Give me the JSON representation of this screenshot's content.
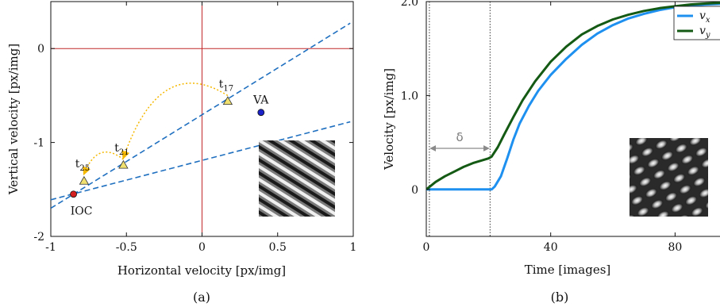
{
  "chart_data": [
    {
      "type": "scatter",
      "panel_label": "(a)",
      "xlabel": "Horizontal velocity [px/img]",
      "ylabel": "Vertical velocity [px/img]",
      "xlim": [
        -1,
        1
      ],
      "ylim": [
        -2,
        0.5
      ],
      "xticks": [
        -1,
        -0.5,
        0,
        0.5,
        1
      ],
      "xtick_labels": [
        "-1",
        "-0.5",
        "0",
        "0.5",
        "1"
      ],
      "yticks": [
        -2,
        -1,
        0
      ],
      "ytick_labels": [
        "-2",
        "-1",
        "0"
      ],
      "reference_lines": {
        "x": 0,
        "y": 0,
        "color": "#c0282a"
      },
      "constraint_lines": [
        {
          "x": [
            -1,
            0.98
          ],
          "y": [
            -1.7,
            0.27
          ],
          "color": "#2070c0",
          "style": "dashed"
        },
        {
          "x": [
            -1,
            0.98
          ],
          "y": [
            -1.61,
            -0.78
          ],
          "color": "#2070c0",
          "style": "dashed"
        }
      ],
      "points": [
        {
          "label": "IOC",
          "x": -0.85,
          "y": -1.55,
          "color": "#d42020",
          "marker": "circle"
        },
        {
          "label": "VA",
          "x": 0.39,
          "y": -0.68,
          "color": "#1a22c8",
          "marker": "circle"
        },
        {
          "label": "t17",
          "label_main": "t",
          "label_sub": "17",
          "x": 0.17,
          "y": -0.56,
          "color": "#f0e070",
          "marker": "triangle"
        },
        {
          "label": "t21",
          "label_main": "t",
          "label_sub": "21",
          "x": -0.52,
          "y": -1.24,
          "color": "#f0e070",
          "marker": "triangle"
        },
        {
          "label": "t25",
          "label_main": "t",
          "label_sub": "25",
          "x": -0.78,
          "y": -1.41,
          "color": "#f0e070",
          "marker": "triangle"
        }
      ],
      "arrows": [
        {
          "from": "t17",
          "to": "t21",
          "color": "#f5b800",
          "style": "dotted"
        },
        {
          "from": "t21",
          "to": "t25",
          "color": "#f5b800",
          "style": "dotted"
        }
      ],
      "inset": "diagonal grating pattern"
    },
    {
      "type": "line",
      "panel_label": "(b)",
      "xlabel": "Time [images]",
      "ylabel": "Velocity [px/img]",
      "xlim": [
        0,
        97
      ],
      "ylim": [
        -0.5,
        2.0
      ],
      "xticks": [
        0,
        40,
        80
      ],
      "xtick_labels": [
        "0",
        "40",
        "80"
      ],
      "yticks": [
        0,
        1.0,
        2.0
      ],
      "ytick_labels": [
        "0",
        "1.0",
        "2.0"
      ],
      "vlines": [
        1,
        20.5
      ],
      "delta_label": "δ",
      "legend_position": "top-right",
      "series": [
        {
          "name": "vx",
          "name_main": "v",
          "name_sub": "x",
          "color": "#1e90ef",
          "x": [
            0,
            10,
            20,
            21,
            22,
            24,
            26,
            28,
            30,
            33,
            36,
            40,
            45,
            50,
            55,
            60,
            65,
            70,
            75,
            80,
            85,
            90,
            97
          ],
          "y": [
            0,
            0,
            0,
            0.0,
            0.03,
            0.14,
            0.33,
            0.53,
            0.7,
            0.89,
            1.05,
            1.22,
            1.39,
            1.54,
            1.66,
            1.75,
            1.82,
            1.87,
            1.91,
            1.94,
            1.96,
            1.97,
            1.98
          ]
        },
        {
          "name": "vy",
          "name_main": "v",
          "name_sub": "y",
          "color": "#145a14",
          "x": [
            0,
            3,
            6,
            9,
            12,
            15,
            18,
            20,
            21,
            23,
            25,
            28,
            31,
            35,
            40,
            45,
            50,
            55,
            60,
            65,
            70,
            75,
            80,
            85,
            90,
            97
          ],
          "y": [
            0,
            0.08,
            0.14,
            0.19,
            0.24,
            0.28,
            0.31,
            0.33,
            0.35,
            0.45,
            0.58,
            0.77,
            0.95,
            1.15,
            1.36,
            1.52,
            1.65,
            1.74,
            1.81,
            1.86,
            1.9,
            1.93,
            1.95,
            1.97,
            1.98,
            1.99
          ]
        }
      ],
      "inset": "plaid grating pattern"
    }
  ]
}
